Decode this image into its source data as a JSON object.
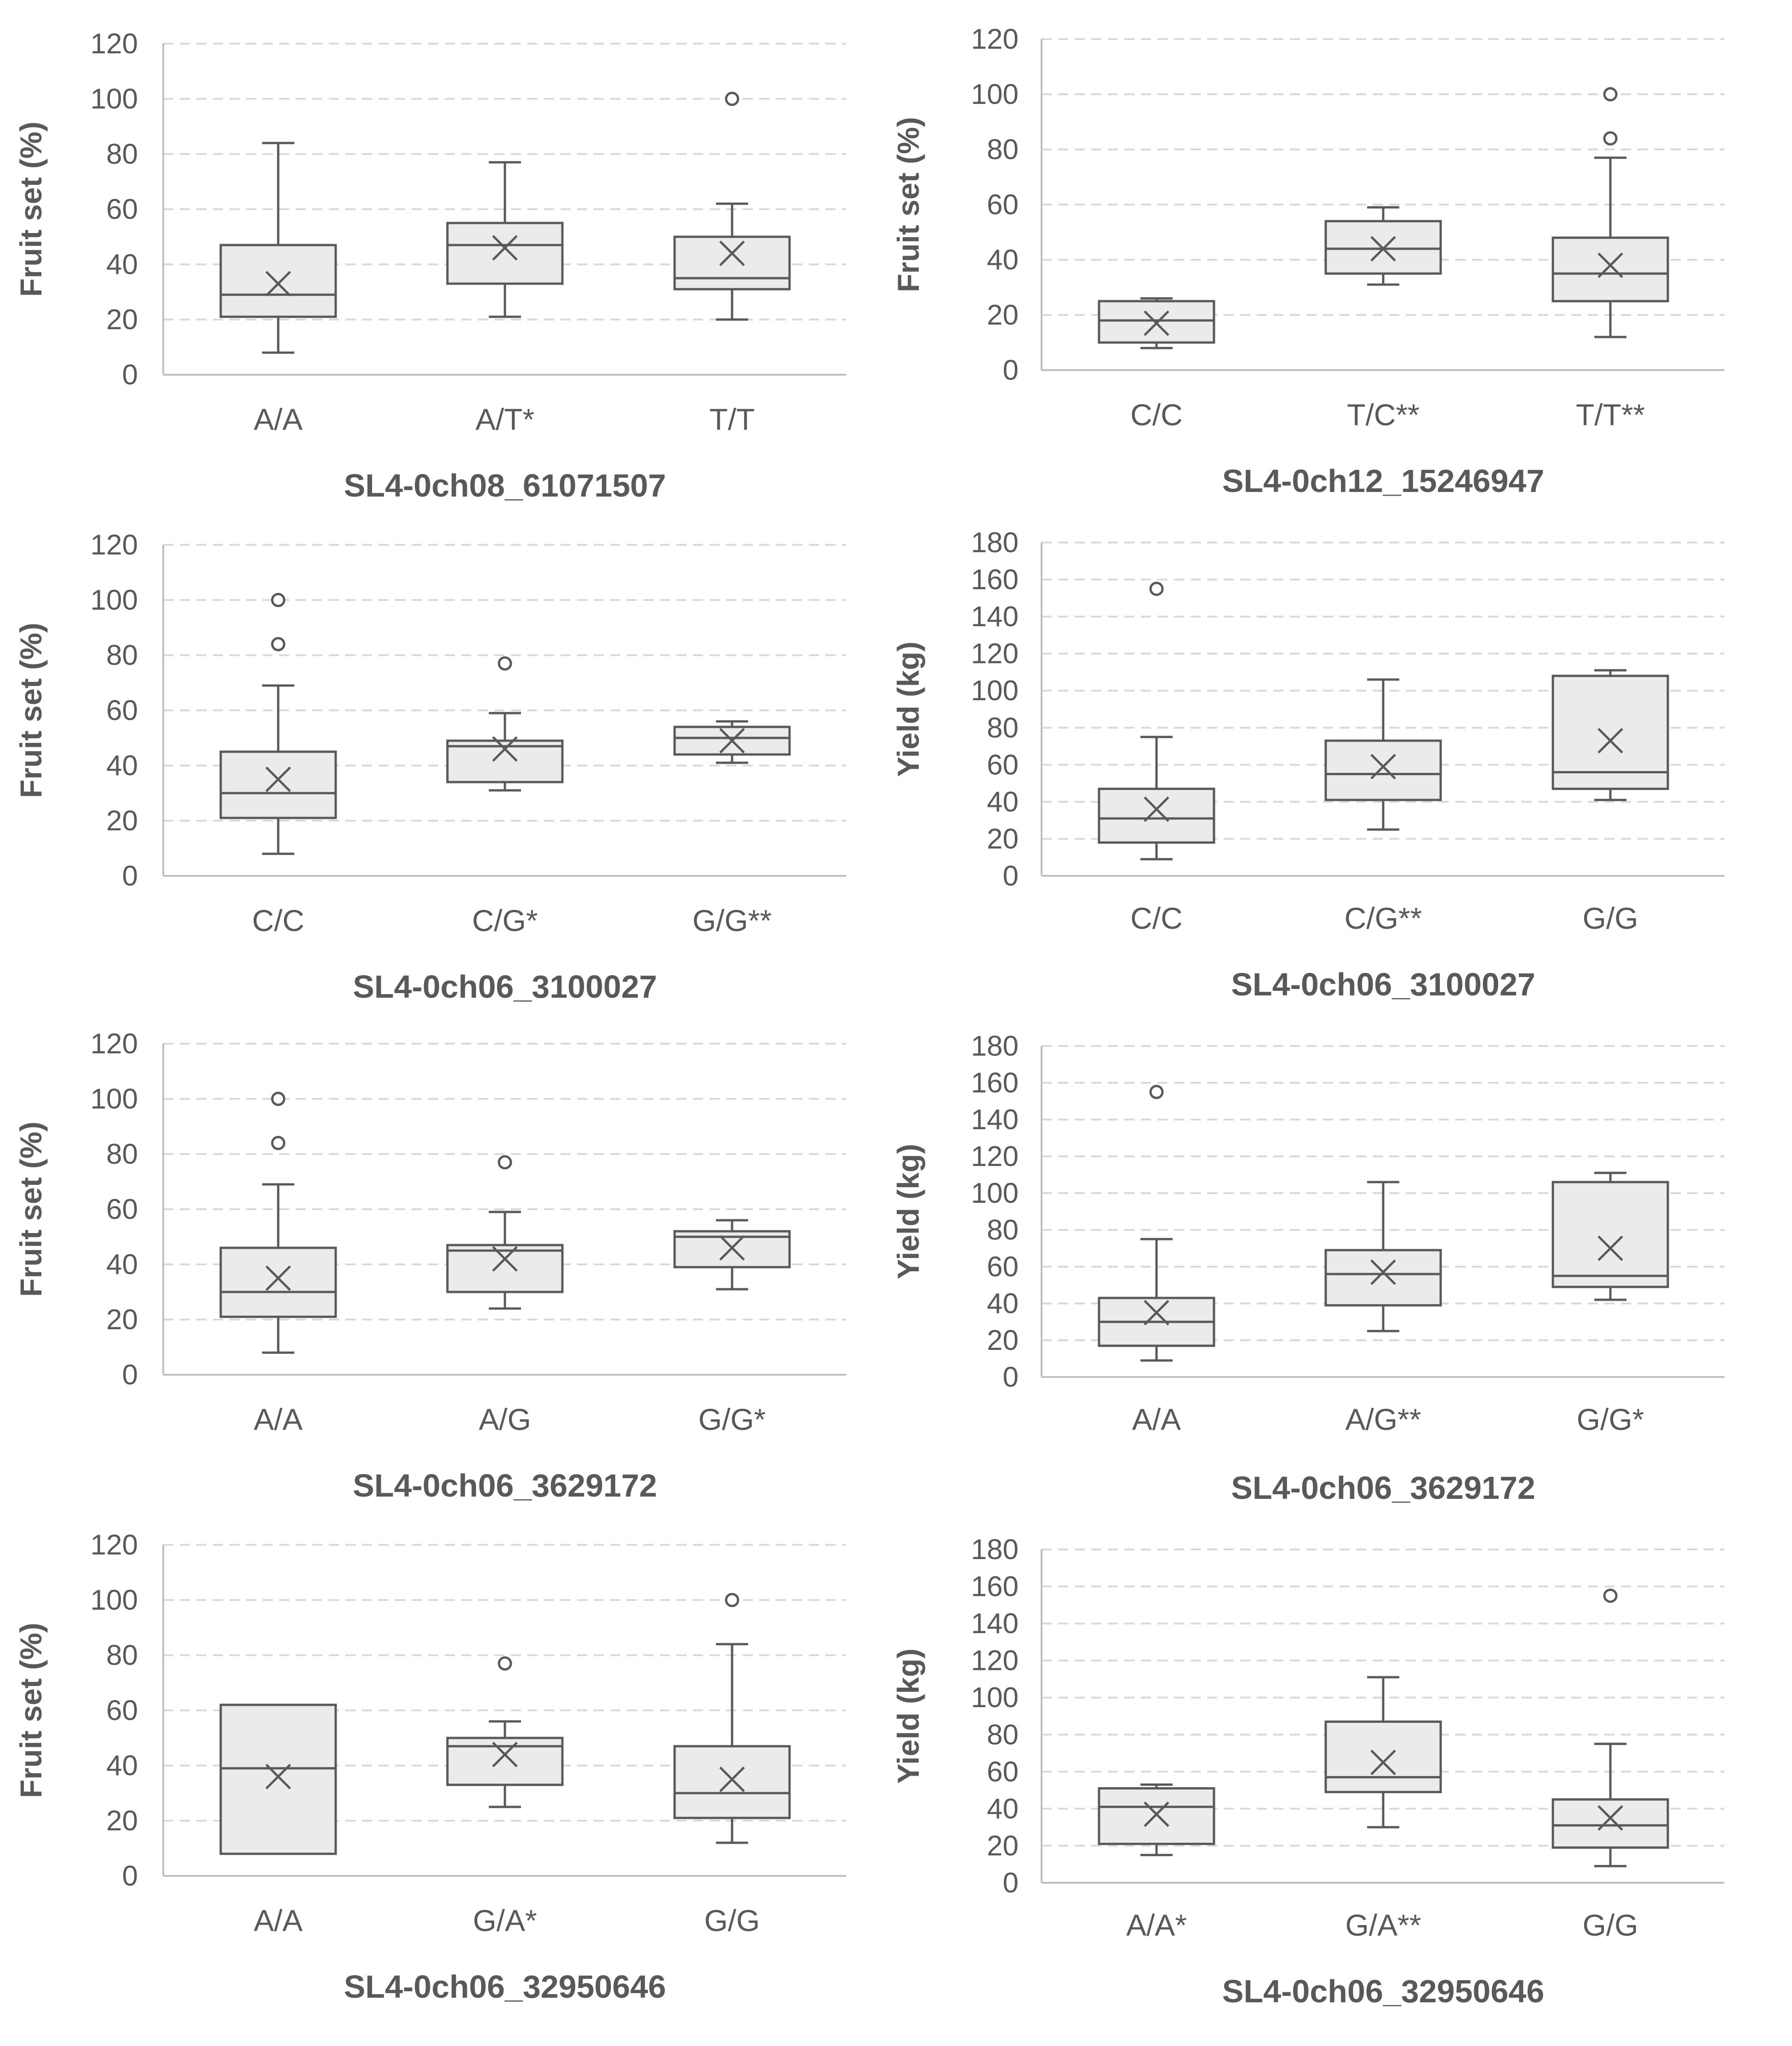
{
  "chart_data": [
    {
      "type": "box",
      "xlabel": "SL4-0ch08_61071507",
      "ylabel": "Fruit set (%)",
      "ylim": [
        0,
        120
      ],
      "yticks": [
        0,
        20,
        40,
        60,
        80,
        100,
        120
      ],
      "grid": true,
      "categories": [
        "A/A",
        "A/T*",
        "T/T"
      ],
      "boxes": [
        {
          "min": 8,
          "q1": 21,
          "median": 29,
          "q3": 47,
          "max": 84,
          "mean": 33,
          "outliers": []
        },
        {
          "min": 21,
          "q1": 33,
          "median": 47,
          "q3": 55,
          "max": 77,
          "mean": 46,
          "outliers": []
        },
        {
          "min": 20,
          "q1": 31,
          "median": 35,
          "q3": 50,
          "max": 62,
          "mean": 44,
          "outliers": [
            100
          ]
        }
      ]
    },
    {
      "type": "box",
      "xlabel": "SL4-0ch12_15246947",
      "ylabel": "Fruit set (%)",
      "ylim": [
        0,
        120
      ],
      "yticks": [
        0,
        20,
        40,
        60,
        80,
        100,
        120
      ],
      "grid": true,
      "categories": [
        "C/C",
        "T/C**",
        "T/T**"
      ],
      "boxes": [
        {
          "min": 8,
          "q1": 10,
          "median": 18,
          "q3": 25,
          "max": 26,
          "mean": 17,
          "outliers": []
        },
        {
          "min": 31,
          "q1": 35,
          "median": 44,
          "q3": 54,
          "max": 59,
          "mean": 44,
          "outliers": []
        },
        {
          "min": 12,
          "q1": 25,
          "median": 35,
          "q3": 48,
          "max": 77,
          "mean": 38,
          "outliers": [
            100,
            84
          ]
        }
      ]
    },
    {
      "type": "box",
      "xlabel": "SL4-0ch06_3100027",
      "ylabel": "Fruit set (%)",
      "ylim": [
        0,
        120
      ],
      "yticks": [
        0,
        20,
        40,
        60,
        80,
        100,
        120
      ],
      "grid": true,
      "categories": [
        "C/C",
        "C/G*",
        "G/G**"
      ],
      "boxes": [
        {
          "min": 8,
          "q1": 21,
          "median": 30,
          "q3": 45,
          "max": 69,
          "mean": 35,
          "outliers": [
            100,
            84
          ]
        },
        {
          "min": 31,
          "q1": 34,
          "median": 47,
          "q3": 49,
          "max": 59,
          "mean": 46,
          "outliers": [
            77
          ]
        },
        {
          "min": 41,
          "q1": 44,
          "median": 50,
          "q3": 54,
          "max": 56,
          "mean": 49,
          "outliers": []
        }
      ]
    },
    {
      "type": "box",
      "xlabel": "SL4-0ch06_3100027",
      "ylabel": "Yield (kg)",
      "ylim": [
        0,
        180
      ],
      "yticks": [
        0,
        20,
        40,
        60,
        80,
        100,
        120,
        140,
        160,
        180
      ],
      "grid": true,
      "categories": [
        "C/C",
        "C/G**",
        "G/G"
      ],
      "boxes": [
        {
          "min": 9,
          "q1": 18,
          "median": 31,
          "q3": 47,
          "max": 75,
          "mean": 36,
          "outliers": [
            155
          ]
        },
        {
          "min": 25,
          "q1": 41,
          "median": 55,
          "q3": 73,
          "max": 106,
          "mean": 59,
          "outliers": []
        },
        {
          "min": 41,
          "q1": 47,
          "median": 56,
          "q3": 108,
          "max": 111,
          "mean": 73,
          "outliers": []
        }
      ]
    },
    {
      "type": "box",
      "xlabel": "SL4-0ch06_3629172",
      "ylabel": "Fruit set (%)",
      "ylim": [
        0,
        120
      ],
      "yticks": [
        0,
        20,
        40,
        60,
        80,
        100,
        120
      ],
      "grid": true,
      "categories": [
        "A/A",
        "A/G",
        "G/G*"
      ],
      "boxes": [
        {
          "min": 8,
          "q1": 21,
          "median": 30,
          "q3": 46,
          "max": 69,
          "mean": 35,
          "outliers": [
            100,
            84
          ]
        },
        {
          "min": 24,
          "q1": 30,
          "median": 45,
          "q3": 47,
          "max": 59,
          "mean": 42,
          "outliers": [
            77
          ]
        },
        {
          "min": 31,
          "q1": 39,
          "median": 50,
          "q3": 52,
          "max": 56,
          "mean": 46,
          "outliers": []
        }
      ]
    },
    {
      "type": "box",
      "xlabel": "SL4-0ch06_3629172",
      "ylabel": "Yield (kg)",
      "ylim": [
        0,
        180
      ],
      "yticks": [
        0,
        20,
        40,
        60,
        80,
        100,
        120,
        140,
        160,
        180
      ],
      "grid": true,
      "categories": [
        "A/A",
        "A/G**",
        "G/G*"
      ],
      "boxes": [
        {
          "min": 9,
          "q1": 17,
          "median": 30,
          "q3": 43,
          "max": 75,
          "mean": 35,
          "outliers": [
            155
          ]
        },
        {
          "min": 25,
          "q1": 39,
          "median": 56,
          "q3": 69,
          "max": 106,
          "mean": 57,
          "outliers": []
        },
        {
          "min": 42,
          "q1": 49,
          "median": 55,
          "q3": 106,
          "max": 111,
          "mean": 70,
          "outliers": []
        }
      ]
    },
    {
      "type": "box",
      "xlabel": "SL4-0ch06_32950646",
      "ylabel": "Fruit set (%)",
      "ylim": [
        0,
        120
      ],
      "yticks": [
        0,
        20,
        40,
        60,
        80,
        100,
        120
      ],
      "grid": true,
      "categories": [
        "A/A",
        "G/A*",
        "G/G"
      ],
      "boxes": [
        {
          "min": 8,
          "q1": 8,
          "median": 39,
          "q3": 62,
          "max": 62,
          "mean": 36,
          "outliers": []
        },
        {
          "min": 25,
          "q1": 33,
          "median": 47,
          "q3": 50,
          "max": 56,
          "mean": 44,
          "outliers": [
            77
          ]
        },
        {
          "min": 12,
          "q1": 21,
          "median": 30,
          "q3": 47,
          "max": 84,
          "mean": 35,
          "outliers": [
            100
          ]
        }
      ]
    },
    {
      "type": "box",
      "xlabel": "SL4-0ch06_32950646",
      "ylabel": "Yield (kg)",
      "ylim": [
        0,
        180
      ],
      "yticks": [
        0,
        20,
        40,
        60,
        80,
        100,
        120,
        140,
        160,
        180
      ],
      "grid": true,
      "categories": [
        "A/A*",
        "G/A**",
        "G/G"
      ],
      "boxes": [
        {
          "min": 15,
          "q1": 21,
          "median": 41,
          "q3": 51,
          "max": 53,
          "mean": 37,
          "outliers": []
        },
        {
          "min": 30,
          "q1": 49,
          "median": 57,
          "q3": 87,
          "max": 111,
          "mean": 65,
          "outliers": []
        },
        {
          "min": 9,
          "q1": 19,
          "median": 31,
          "q3": 45,
          "max": 75,
          "mean": 35,
          "outliers": [
            155
          ]
        }
      ]
    }
  ]
}
